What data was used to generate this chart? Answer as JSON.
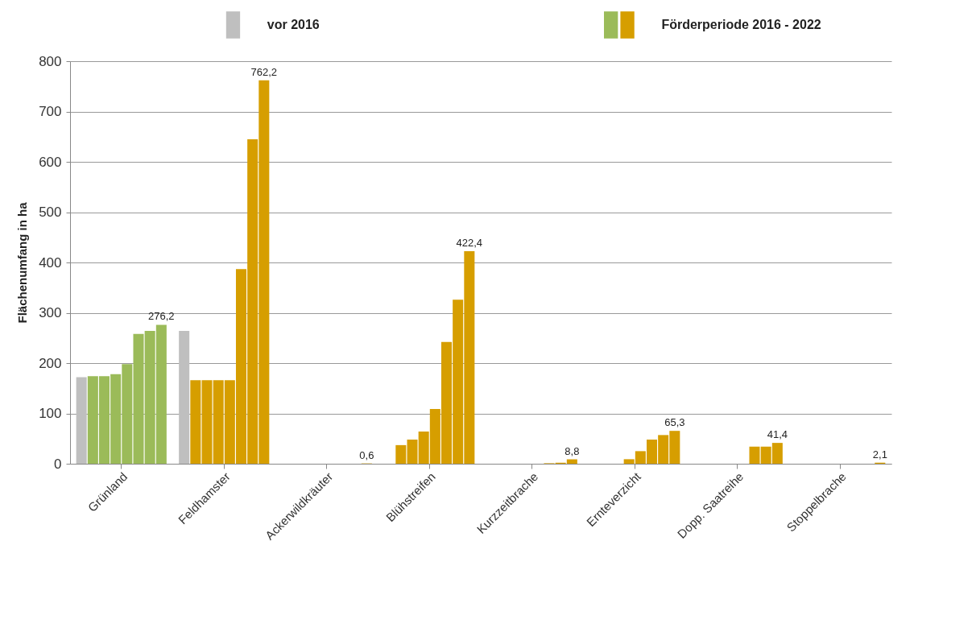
{
  "chart_data": {
    "type": "bar",
    "ylabel": "Flächenumfang in ha",
    "categories": [
      "Grünland",
      "Feldhamster",
      "Ackerwildkräuter",
      "Blühstreifen",
      "Kurzzeitbrache",
      "Ernteverzicht",
      "Dopp. Saatreihe",
      "Stoppelbrache"
    ],
    "series": [
      {
        "name": "vor 2016",
        "color": "#bfbfbf",
        "values": [
          172,
          264,
          null,
          null,
          null,
          null,
          null,
          null
        ]
      },
      {
        "name": "Förderperiode 2016 - 2022",
        "colors": [
          "#9bbb59",
          "#d69e00",
          "#d69e00",
          "#d69e00",
          "#d69e00",
          "#d69e00",
          "#d69e00",
          "#d69e00"
        ],
        "values": [
          174,
          166,
          null,
          37,
          null,
          null,
          null,
          null
        ]
      },
      {
        "colors": [
          "#9bbb59",
          "#d69e00",
          "#d69e00",
          "#d69e00",
          "#d69e00",
          "#d69e00",
          "#d69e00",
          "#d69e00"
        ],
        "values": [
          174,
          166,
          null,
          48,
          null,
          null,
          null,
          null
        ]
      },
      {
        "colors": [
          "#9bbb59",
          "#d69e00",
          "#d69e00",
          "#d69e00",
          "#d69e00",
          "#d69e00",
          "#d69e00",
          "#d69e00"
        ],
        "values": [
          178,
          166,
          null,
          64,
          null,
          9,
          null,
          null
        ]
      },
      {
        "colors": [
          "#9bbb59",
          "#d69e00",
          "#d69e00",
          "#d69e00",
          "#d69e00",
          "#d69e00",
          "#d69e00",
          "#d69e00"
        ],
        "values": [
          198,
          166,
          null,
          109,
          null,
          25,
          null,
          null
        ]
      },
      {
        "colors": [
          "#9bbb59",
          "#d69e00",
          "#d69e00",
          "#d69e00",
          "#d69e00",
          "#d69e00",
          "#d69e00",
          "#d69e00"
        ],
        "values": [
          258,
          387,
          null,
          242,
          1,
          48,
          34,
          null
        ]
      },
      {
        "colors": [
          "#9bbb59",
          "#d69e00",
          "#d69e00",
          "#d69e00",
          "#d69e00",
          "#d69e00",
          "#d69e00",
          "#d69e00"
        ],
        "values": [
          264,
          645,
          null,
          326,
          2,
          57,
          34,
          null
        ]
      },
      {
        "colors": [
          "#9bbb59",
          "#d69e00",
          "#d69e00",
          "#d69e00",
          "#d69e00",
          "#d69e00",
          "#d69e00",
          "#d69e00"
        ],
        "values": [
          276.2,
          762.2,
          0.6,
          422.4,
          8.8,
          65.3,
          41.4,
          2.1
        ],
        "value_labels": [
          "276,2",
          "762,2",
          "0,6",
          "422,4",
          "8,8",
          "65,3",
          "41,4",
          "2,1"
        ]
      }
    ],
    "ylim": [
      0,
      800
    ],
    "yticks": [
      0,
      100,
      200,
      300,
      400,
      500,
      600,
      700,
      800
    ],
    "grid": "y",
    "legend": "top"
  }
}
